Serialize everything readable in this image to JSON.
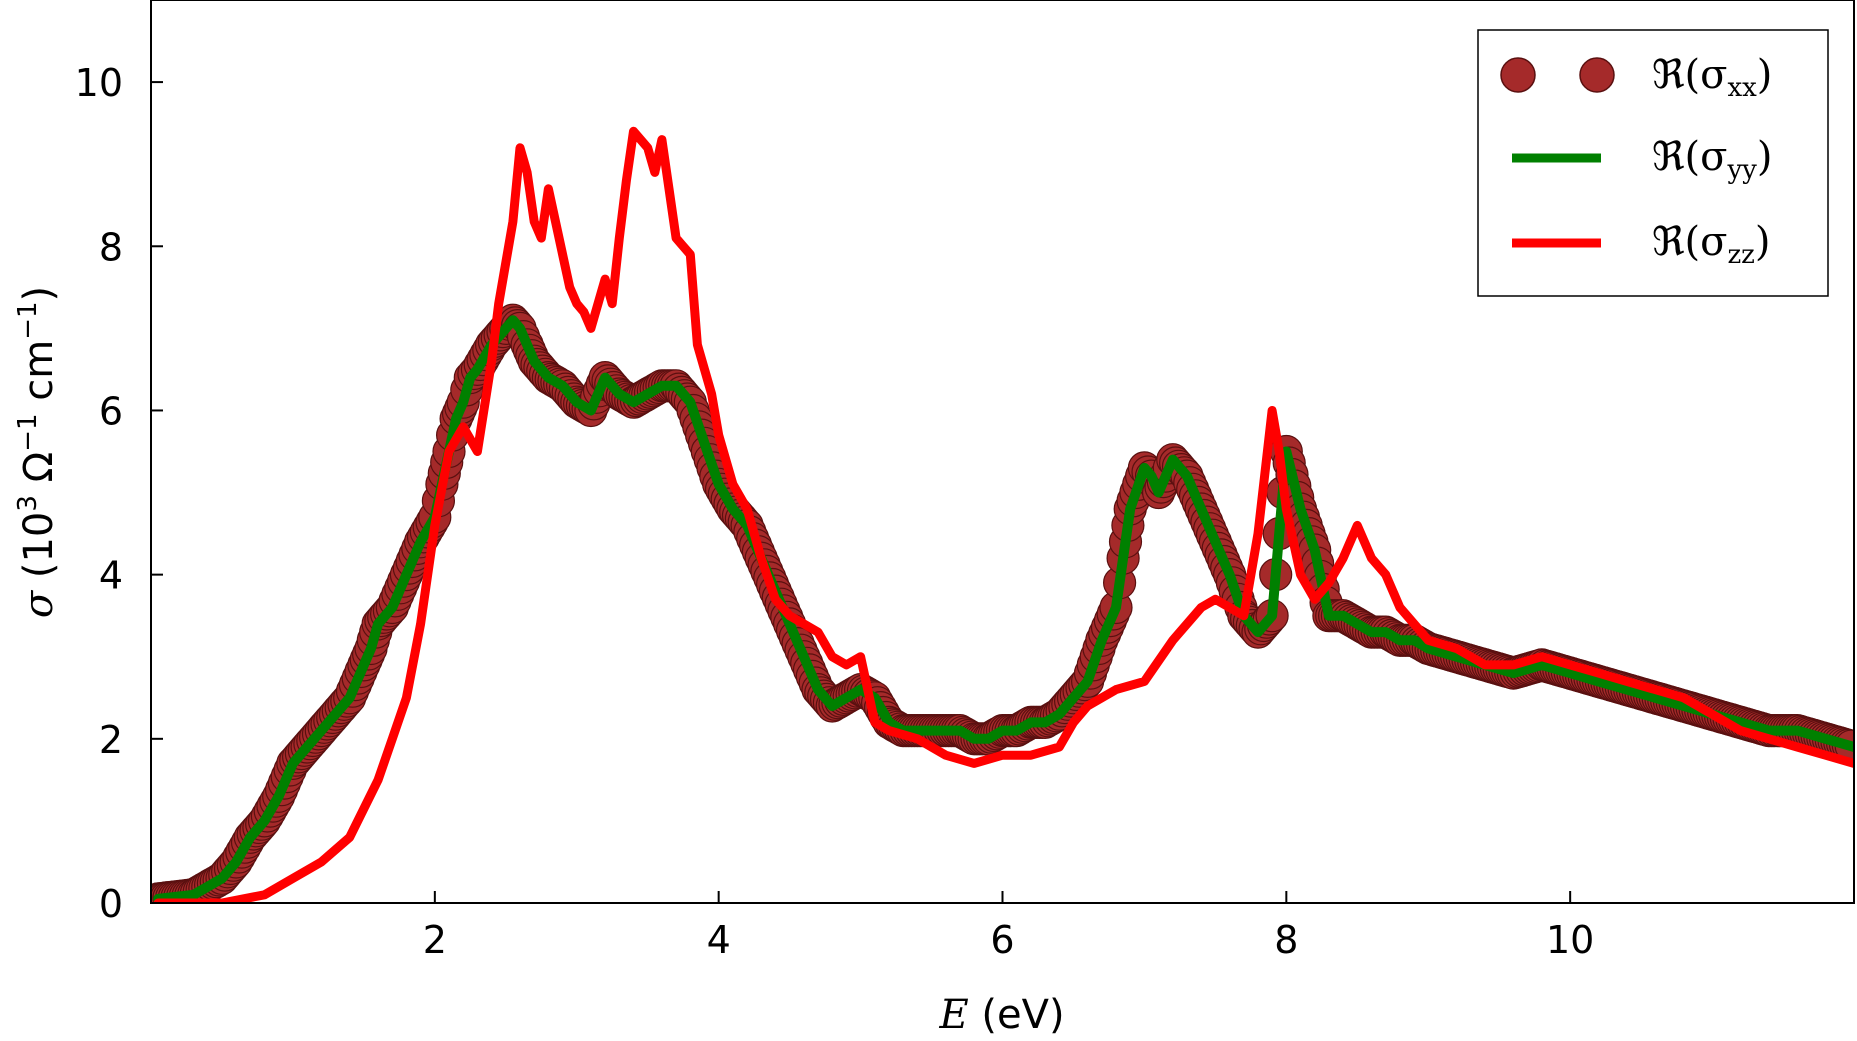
{
  "chart_data": {
    "type": "line",
    "xlabel": {
      "symbol": "E",
      "unit": "(eV)"
    },
    "ylabel": {
      "symbol": "σ",
      "unit_prefix": "(10",
      "exp1": "3",
      "omega": " Ω",
      "exp2": "−1",
      "cm": " cm",
      "exp3": "−1",
      "close": ")"
    },
    "xlim": [
      0,
      12
    ],
    "ylim": [
      0,
      11
    ],
    "xticks": [
      2,
      4,
      6,
      8,
      10
    ],
    "yticks": [
      0,
      2,
      4,
      6,
      8,
      10
    ],
    "xtick_labels": [
      "2",
      "4",
      "6",
      "8",
      "10"
    ],
    "ytick_labels": [
      "0",
      "2",
      "4",
      "6",
      "8",
      "10"
    ],
    "grid": false,
    "legend_position": "top-right",
    "series": [
      {
        "name": "ℜ(σxx)",
        "name_main": "ℜ(σ",
        "name_sub": "xx",
        "name_close": ")",
        "style": "markers",
        "color": "#a52a2a",
        "x": [
          0.05,
          0.3,
          0.5,
          0.6,
          0.7,
          0.8,
          0.9,
          1.0,
          1.1,
          1.2,
          1.3,
          1.4,
          1.5,
          1.55,
          1.6,
          1.7,
          1.8,
          1.9,
          2.0,
          2.05,
          2.1,
          2.15,
          2.2,
          2.25,
          2.3,
          2.4,
          2.5,
          2.55,
          2.6,
          2.65,
          2.7,
          2.8,
          2.9,
          3.0,
          3.1,
          3.2,
          3.3,
          3.4,
          3.5,
          3.6,
          3.7,
          3.8,
          3.9,
          4.0,
          4.1,
          4.2,
          4.3,
          4.4,
          4.5,
          4.6,
          4.7,
          4.8,
          4.9,
          5.0,
          5.1,
          5.2,
          5.3,
          5.5,
          5.7,
          5.8,
          5.9,
          6.0,
          6.1,
          6.2,
          6.3,
          6.4,
          6.5,
          6.6,
          6.7,
          6.8,
          6.85,
          6.9,
          7.0,
          7.05,
          7.1,
          7.15,
          7.2,
          7.3,
          7.4,
          7.5,
          7.6,
          7.7,
          7.8,
          7.9,
          7.95,
          8.0,
          8.1,
          8.2,
          8.3,
          8.4,
          8.5,
          8.6,
          8.7,
          8.8,
          8.9,
          9.0,
          9.2,
          9.4,
          9.6,
          9.8,
          10.0,
          10.2,
          10.4,
          10.6,
          10.8,
          11.0,
          11.2,
          11.4,
          11.6,
          11.8,
          12.0
        ],
        "y": [
          0.05,
          0.1,
          0.3,
          0.5,
          0.8,
          1.0,
          1.3,
          1.7,
          1.9,
          2.1,
          2.3,
          2.5,
          2.9,
          3.1,
          3.4,
          3.6,
          4.0,
          4.4,
          4.7,
          5.1,
          5.5,
          5.9,
          6.1,
          6.4,
          6.5,
          6.8,
          7.0,
          7.1,
          7.0,
          6.8,
          6.6,
          6.4,
          6.3,
          6.1,
          6.0,
          6.4,
          6.2,
          6.1,
          6.2,
          6.3,
          6.3,
          6.1,
          5.6,
          5.1,
          4.8,
          4.6,
          4.2,
          3.8,
          3.4,
          3.0,
          2.6,
          2.4,
          2.5,
          2.6,
          2.5,
          2.2,
          2.1,
          2.1,
          2.1,
          2.0,
          2.0,
          2.1,
          2.1,
          2.2,
          2.2,
          2.3,
          2.5,
          2.7,
          3.2,
          3.6,
          4.2,
          4.8,
          5.3,
          5.2,
          5.0,
          5.2,
          5.4,
          5.2,
          4.8,
          4.4,
          4.0,
          3.5,
          3.3,
          3.5,
          4.5,
          5.5,
          4.8,
          4.3,
          3.5,
          3.5,
          3.4,
          3.3,
          3.3,
          3.2,
          3.2,
          3.1,
          3.0,
          2.9,
          2.8,
          2.9,
          2.8,
          2.7,
          2.6,
          2.5,
          2.4,
          2.3,
          2.2,
          2.1,
          2.1,
          2.0,
          1.9
        ]
      },
      {
        "name": "ℜ(σyy)",
        "name_main": "ℜ(σ",
        "name_sub": "yy",
        "name_close": ")",
        "style": "line",
        "color": "#008000",
        "x": [
          0.05,
          0.3,
          0.5,
          0.6,
          0.7,
          0.8,
          0.9,
          1.0,
          1.1,
          1.2,
          1.3,
          1.4,
          1.5,
          1.55,
          1.6,
          1.7,
          1.8,
          1.9,
          2.0,
          2.05,
          2.1,
          2.15,
          2.2,
          2.25,
          2.3,
          2.4,
          2.5,
          2.55,
          2.6,
          2.65,
          2.7,
          2.8,
          2.9,
          3.0,
          3.1,
          3.2,
          3.3,
          3.4,
          3.5,
          3.6,
          3.7,
          3.8,
          3.9,
          4.0,
          4.1,
          4.2,
          4.3,
          4.4,
          4.5,
          4.6,
          4.7,
          4.8,
          4.9,
          5.0,
          5.1,
          5.2,
          5.3,
          5.5,
          5.7,
          5.8,
          5.9,
          6.0,
          6.1,
          6.2,
          6.3,
          6.4,
          6.5,
          6.6,
          6.7,
          6.8,
          6.85,
          6.9,
          7.0,
          7.05,
          7.1,
          7.15,
          7.2,
          7.3,
          7.4,
          7.5,
          7.6,
          7.7,
          7.8,
          7.9,
          7.95,
          8.0,
          8.1,
          8.2,
          8.3,
          8.4,
          8.5,
          8.6,
          8.7,
          8.8,
          8.9,
          9.0,
          9.2,
          9.4,
          9.6,
          9.8,
          10.0,
          10.2,
          10.4,
          10.6,
          10.8,
          11.0,
          11.2,
          11.4,
          11.6,
          11.8,
          12.0
        ],
        "y": [
          0.05,
          0.1,
          0.3,
          0.5,
          0.8,
          1.0,
          1.3,
          1.7,
          1.9,
          2.1,
          2.3,
          2.5,
          2.9,
          3.1,
          3.4,
          3.6,
          4.0,
          4.4,
          4.7,
          5.1,
          5.5,
          5.9,
          6.1,
          6.4,
          6.5,
          6.8,
          7.0,
          7.1,
          7.0,
          6.8,
          6.6,
          6.4,
          6.3,
          6.1,
          6.0,
          6.4,
          6.2,
          6.1,
          6.2,
          6.3,
          6.3,
          6.1,
          5.6,
          5.1,
          4.8,
          4.6,
          4.2,
          3.8,
          3.4,
          3.0,
          2.6,
          2.4,
          2.5,
          2.6,
          2.5,
          2.2,
          2.1,
          2.1,
          2.1,
          2.0,
          2.0,
          2.1,
          2.1,
          2.2,
          2.2,
          2.3,
          2.5,
          2.7,
          3.2,
          3.6,
          4.2,
          4.8,
          5.3,
          5.2,
          5.0,
          5.2,
          5.4,
          5.2,
          4.8,
          4.4,
          4.0,
          3.5,
          3.3,
          3.5,
          4.5,
          5.5,
          4.8,
          4.3,
          3.5,
          3.5,
          3.4,
          3.3,
          3.3,
          3.2,
          3.2,
          3.1,
          3.0,
          2.9,
          2.8,
          2.9,
          2.8,
          2.7,
          2.6,
          2.5,
          2.4,
          2.3,
          2.2,
          2.1,
          2.1,
          2.0,
          1.9
        ]
      },
      {
        "name": "ℜ(σzz)",
        "name_main": "ℜ(σ",
        "name_sub": "zz",
        "name_close": ")",
        "style": "line",
        "color": "#ff0000",
        "x": [
          0.05,
          0.5,
          0.8,
          1.0,
          1.2,
          1.4,
          1.6,
          1.7,
          1.8,
          1.9,
          2.0,
          2.1,
          2.2,
          2.3,
          2.4,
          2.45,
          2.5,
          2.55,
          2.6,
          2.65,
          2.7,
          2.75,
          2.8,
          2.85,
          2.9,
          2.95,
          3.0,
          3.05,
          3.1,
          3.15,
          3.2,
          3.25,
          3.3,
          3.35,
          3.4,
          3.45,
          3.5,
          3.55,
          3.6,
          3.65,
          3.7,
          3.75,
          3.8,
          3.85,
          3.9,
          3.95,
          4.0,
          4.1,
          4.2,
          4.3,
          4.4,
          4.5,
          4.6,
          4.7,
          4.8,
          4.9,
          5.0,
          5.1,
          5.2,
          5.4,
          5.6,
          5.8,
          6.0,
          6.2,
          6.4,
          6.5,
          6.6,
          6.8,
          7.0,
          7.2,
          7.4,
          7.5,
          7.6,
          7.7,
          7.8,
          7.9,
          7.95,
          8.0,
          8.1,
          8.2,
          8.3,
          8.4,
          8.5,
          8.55,
          8.6,
          8.7,
          8.8,
          9.0,
          9.2,
          9.4,
          9.6,
          9.8,
          10.0,
          10.2,
          10.4,
          10.6,
          10.8,
          11.0,
          11.2,
          11.4,
          11.6,
          11.8,
          12.0
        ],
        "y": [
          0.0,
          0.0,
          0.1,
          0.3,
          0.5,
          0.8,
          1.5,
          2.0,
          2.5,
          3.4,
          4.6,
          5.5,
          5.8,
          5.5,
          6.6,
          7.3,
          7.8,
          8.3,
          9.2,
          8.9,
          8.3,
          8.1,
          8.7,
          8.3,
          7.9,
          7.5,
          7.3,
          7.2,
          7.0,
          7.3,
          7.6,
          7.3,
          8.1,
          8.8,
          9.4,
          9.3,
          9.2,
          8.9,
          9.3,
          8.7,
          8.1,
          8.0,
          7.9,
          6.8,
          6.5,
          6.2,
          5.7,
          5.1,
          4.8,
          4.2,
          3.7,
          3.5,
          3.4,
          3.3,
          3.0,
          2.9,
          3.0,
          2.2,
          2.1,
          2.0,
          1.8,
          1.7,
          1.8,
          1.8,
          1.9,
          2.2,
          2.4,
          2.6,
          2.7,
          3.2,
          3.6,
          3.7,
          3.6,
          3.5,
          4.5,
          6.0,
          5.5,
          4.8,
          4.0,
          3.7,
          3.9,
          4.2,
          4.6,
          4.4,
          4.2,
          4.0,
          3.6,
          3.2,
          3.1,
          2.9,
          2.9,
          3.0,
          2.9,
          2.8,
          2.7,
          2.6,
          2.5,
          2.3,
          2.1,
          2.0,
          1.9,
          1.8,
          1.7
        ]
      }
    ]
  }
}
